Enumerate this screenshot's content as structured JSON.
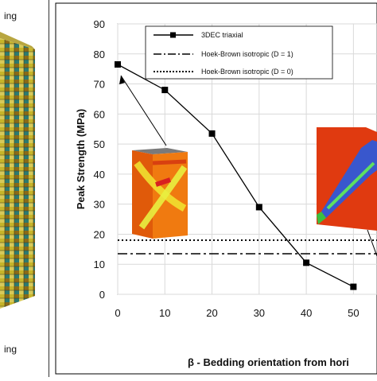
{
  "left_panel": {
    "label_top": "ing",
    "label_bottom": "ing"
  },
  "chart_data": {
    "type": "line",
    "title": "",
    "xlabel": "β - Bedding orientation from hori",
    "ylabel": "Peak Strength (MPa)",
    "xlim": [
      0,
      55
    ],
    "ylim": [
      0,
      90
    ],
    "xticks": [
      0,
      10,
      20,
      30,
      40,
      50
    ],
    "yticks": [
      0,
      10,
      20,
      30,
      40,
      50,
      60,
      70,
      80,
      90
    ],
    "grid": true,
    "legend_position": "top-left",
    "series": [
      {
        "name": "3DEC triaxial",
        "style": "solid-square-markers",
        "color": "#000000",
        "x": [
          0,
          10,
          20,
          30,
          40,
          50
        ],
        "values": [
          76.5,
          68.0,
          53.5,
          29.0,
          10.5,
          2.5
        ]
      },
      {
        "name": "Hoek-Brown isotropic (D = 1)",
        "style": "dash-dot",
        "color": "#000000",
        "constant": 13.5
      },
      {
        "name": "Hoek-Brown isotropic (D = 0)",
        "style": "dotted",
        "color": "#000000",
        "constant": 18.0
      }
    ]
  }
}
